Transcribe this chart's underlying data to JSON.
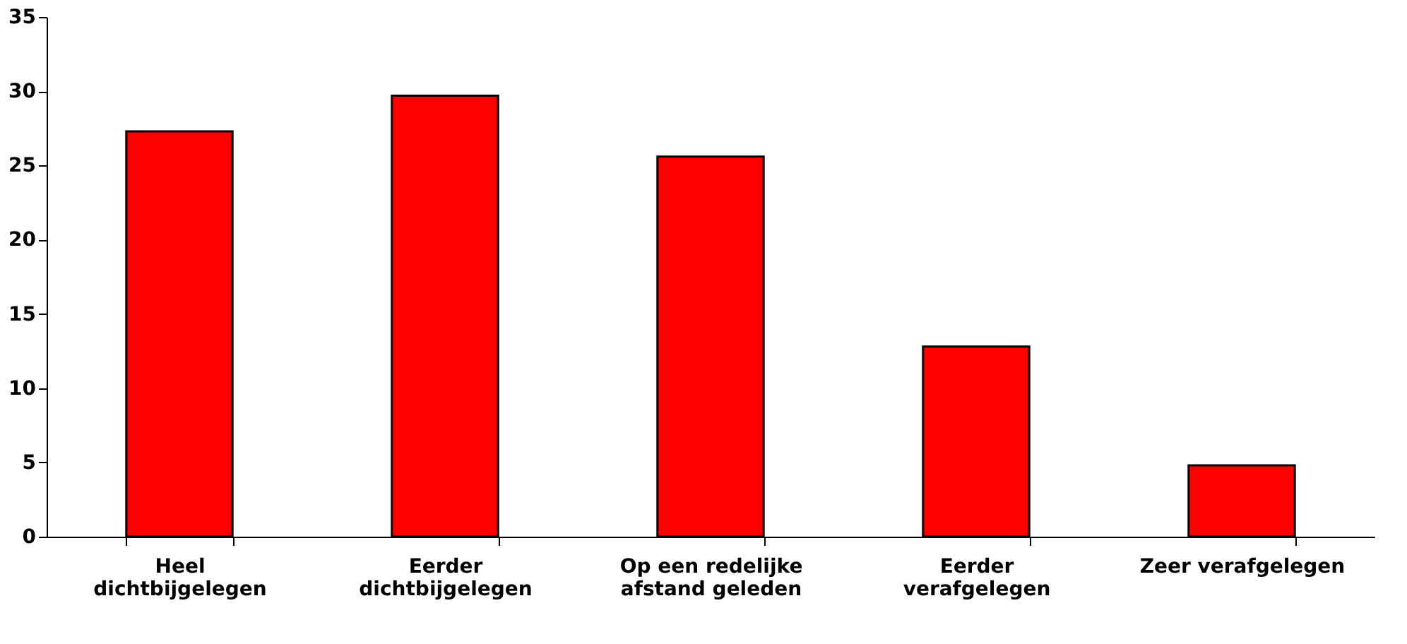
{
  "chart_data": {
    "type": "bar",
    "categories": [
      "Heel\ndichtbijgelegen",
      "Eerder\ndichtbijgelegen",
      "Op een redelijke\nafstand geleden",
      "Eerder\nverafgelegen",
      "Zeer verafgelegen"
    ],
    "values": [
      27.3,
      29.7,
      25.6,
      12.8,
      4.8
    ],
    "color": "#ff0000",
    "ylim": [
      0,
      35
    ],
    "yticks": [
      0,
      5,
      10,
      15,
      20,
      25,
      30,
      35
    ],
    "grid": false
  }
}
